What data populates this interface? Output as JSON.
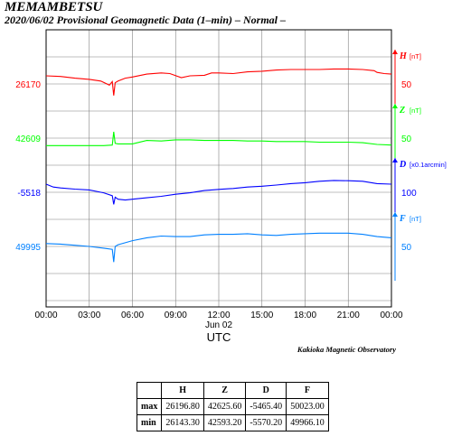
{
  "header": {
    "station": "MEMAMBETSU",
    "subtitle": "2020/06/02  Provisional Geomagnetic Data (1–min)  – Normal –"
  },
  "credit": "Kakioka Magnetic Observatory",
  "chart_data": {
    "type": "line",
    "x_unit": "hours UTC",
    "x_ticks": [
      "00:00",
      "03:00",
      "06:00",
      "09:00",
      "12:00",
      "15:00",
      "18:00",
      "21:00",
      "00:00"
    ],
    "date_label": "Jun 02",
    "xlabel": "UTC",
    "grid": true,
    "series": [
      {
        "name": "H",
        "unit": "[nT]",
        "base_label": "26170",
        "scale_label": "50",
        "color": "#ff0000",
        "points": [
          [
            0,
            26184
          ],
          [
            1,
            26183
          ],
          [
            2,
            26180
          ],
          [
            3,
            26178
          ],
          [
            3.8,
            26175
          ],
          [
            4.4,
            26168
          ],
          [
            4.6,
            26174
          ],
          [
            4.7,
            26150
          ],
          [
            4.8,
            26172
          ],
          [
            5,
            26175
          ],
          [
            5.5,
            26180
          ],
          [
            6,
            26182
          ],
          [
            7,
            26187
          ],
          [
            8,
            26189
          ],
          [
            8.6,
            26188
          ],
          [
            9.4,
            26181
          ],
          [
            10,
            26184
          ],
          [
            11,
            26185
          ],
          [
            11.5,
            26189
          ],
          [
            12,
            26189
          ],
          [
            13,
            26188
          ],
          [
            14,
            26191
          ],
          [
            15,
            26192
          ],
          [
            16,
            26194
          ],
          [
            17,
            26195
          ],
          [
            18,
            26195
          ],
          [
            19,
            26195
          ],
          [
            20,
            26196
          ],
          [
            21,
            26196
          ],
          [
            22,
            26195
          ],
          [
            22.8,
            26193
          ],
          [
            23,
            26190
          ],
          [
            23.5,
            26188
          ],
          [
            24,
            26187
          ]
        ]
      },
      {
        "name": "Z",
        "unit": "[nT]",
        "base_label": "42609",
        "scale_label": "50",
        "color": "#00ff00",
        "points": [
          [
            0,
            42596
          ],
          [
            2,
            42596
          ],
          [
            4,
            42596
          ],
          [
            4.6,
            42597
          ],
          [
            4.7,
            42620
          ],
          [
            4.8,
            42600
          ],
          [
            5,
            42599
          ],
          [
            6,
            42599
          ],
          [
            7,
            42605
          ],
          [
            8,
            42604
          ],
          [
            9,
            42606
          ],
          [
            10,
            42606
          ],
          [
            11,
            42605
          ],
          [
            12,
            42605
          ],
          [
            13,
            42605
          ],
          [
            14,
            42604
          ],
          [
            15,
            42604
          ],
          [
            16,
            42603
          ],
          [
            17,
            42603
          ],
          [
            18,
            42603
          ],
          [
            19,
            42602
          ],
          [
            20,
            42602
          ],
          [
            21,
            42602
          ],
          [
            22,
            42601
          ],
          [
            23,
            42598
          ],
          [
            24,
            42597
          ]
        ]
      },
      {
        "name": "D",
        "unit": "[x0.1arcmin]",
        "base_label": "-5518",
        "scale_label": "100",
        "color": "#0000ff",
        "points": [
          [
            0,
            -5490
          ],
          [
            0.5,
            -5500
          ],
          [
            1,
            -5503
          ],
          [
            2,
            -5507
          ],
          [
            3,
            -5510
          ],
          [
            4,
            -5520
          ],
          [
            4.6,
            -5530
          ],
          [
            4.7,
            -5560
          ],
          [
            4.8,
            -5535
          ],
          [
            5,
            -5542
          ],
          [
            5.5,
            -5545
          ],
          [
            6,
            -5542
          ],
          [
            7,
            -5537
          ],
          [
            8,
            -5532
          ],
          [
            9,
            -5525
          ],
          [
            10,
            -5520
          ],
          [
            11,
            -5512
          ],
          [
            12,
            -5508
          ],
          [
            13,
            -5505
          ],
          [
            14,
            -5500
          ],
          [
            15,
            -5497
          ],
          [
            16,
            -5493
          ],
          [
            17,
            -5488
          ],
          [
            18,
            -5485
          ],
          [
            19,
            -5480
          ],
          [
            20,
            -5477
          ],
          [
            21,
            -5478
          ],
          [
            22,
            -5480
          ],
          [
            23,
            -5488
          ],
          [
            24,
            -5490
          ]
        ]
      },
      {
        "name": "F",
        "unit": "[nT]",
        "base_label": "49995",
        "scale_label": "50",
        "color": "#0080ff",
        "points": [
          [
            0,
            50000
          ],
          [
            1,
            49999
          ],
          [
            2,
            49997
          ],
          [
            3,
            49995
          ],
          [
            4,
            49992
          ],
          [
            4.6,
            49990
          ],
          [
            4.7,
            49968
          ],
          [
            4.8,
            49995
          ],
          [
            5,
            49998
          ],
          [
            6,
            50005
          ],
          [
            7,
            50010
          ],
          [
            8,
            50013
          ],
          [
            9,
            50012
          ],
          [
            10,
            50012
          ],
          [
            11,
            50015
          ],
          [
            12,
            50016
          ],
          [
            13,
            50016
          ],
          [
            14,
            50017
          ],
          [
            15,
            50015
          ],
          [
            16,
            50014
          ],
          [
            17,
            50016
          ],
          [
            18,
            50017
          ],
          [
            19,
            50018
          ],
          [
            20,
            50018
          ],
          [
            21,
            50018
          ],
          [
            22,
            50016
          ],
          [
            23,
            50012
          ],
          [
            24,
            50010
          ]
        ]
      }
    ]
  },
  "stats": {
    "headers": [
      "H",
      "Z",
      "D",
      "F"
    ],
    "rows": [
      {
        "label": "max",
        "values": [
          "26196.80",
          "42625.60",
          "-5465.40",
          "50023.00"
        ]
      },
      {
        "label": "min",
        "values": [
          "26143.30",
          "42593.20",
          "-5570.20",
          "49966.10"
        ]
      }
    ]
  }
}
